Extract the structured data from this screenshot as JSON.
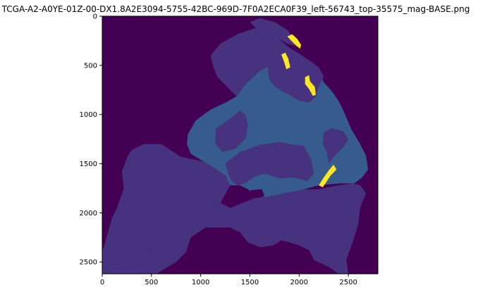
{
  "chart_data": {
    "type": "heatmap",
    "title": "TCGA-A2-A0YE-01Z-00-DX1.8A2E3094-5755-42BC-969D-7F0A2ECA0F39_left-56743_top-35575_mag-BASE.png",
    "xlabel": "",
    "ylabel": "",
    "xlim": [
      0,
      2800
    ],
    "ylim": [
      2620,
      0
    ],
    "x_ticks": [
      0,
      500,
      1000,
      1500,
      2000,
      2500
    ],
    "y_ticks": [
      0,
      500,
      1000,
      1500,
      2000,
      2500
    ],
    "colormap": "viridis",
    "grid": false,
    "legend": "none",
    "classes": [
      {
        "value": 0,
        "color": "#440154"
      },
      {
        "value": 1,
        "color": "#46327e"
      },
      {
        "value": 2,
        "color": "#365c8d"
      },
      {
        "value": 4,
        "color": "#fde725"
      }
    ],
    "regions": [
      {
        "class": 1,
        "polygon": [
          [
            100,
            2050
          ],
          [
            150,
            1950
          ],
          [
            220,
            1750
          ],
          [
            200,
            1580
          ],
          [
            260,
            1420
          ],
          [
            300,
            1360
          ],
          [
            420,
            1300
          ],
          [
            600,
            1300
          ],
          [
            800,
            1430
          ],
          [
            950,
            1460
          ],
          [
            1100,
            1500
          ],
          [
            1250,
            1620
          ],
          [
            1300,
            1720
          ],
          [
            1200,
            1900
          ],
          [
            1050,
            2000
          ],
          [
            800,
            2120
          ],
          [
            650,
            2280
          ],
          [
            400,
            2440
          ],
          [
            250,
            2560
          ],
          [
            0,
            2560
          ],
          [
            0,
            2400
          ]
        ]
      },
      {
        "class": 1,
        "polygon": [
          [
            1300,
            1950
          ],
          [
            1550,
            1850
          ],
          [
            1800,
            1800
          ],
          [
            2050,
            1760
          ],
          [
            2200,
            1760
          ],
          [
            2400,
            1720
          ],
          [
            2550,
            1700
          ],
          [
            2620,
            1720
          ],
          [
            2680,
            1800
          ],
          [
            2620,
            1950
          ],
          [
            2600,
            2120
          ],
          [
            2550,
            2280
          ],
          [
            2480,
            2480
          ],
          [
            2500,
            2620
          ],
          [
            2400,
            2620
          ],
          [
            2300,
            2550
          ],
          [
            2150,
            2480
          ],
          [
            2100,
            2380
          ],
          [
            2000,
            2330
          ],
          [
            1900,
            2300
          ],
          [
            1820,
            2280
          ],
          [
            1740,
            2330
          ],
          [
            1600,
            2350
          ],
          [
            1480,
            2300
          ],
          [
            1400,
            2200
          ],
          [
            1300,
            2150
          ],
          [
            1050,
            2150
          ],
          [
            900,
            2250
          ],
          [
            850,
            2400
          ],
          [
            750,
            2500
          ],
          [
            550,
            2620
          ],
          [
            0,
            2620
          ],
          [
            0,
            2560
          ],
          [
            250,
            2560
          ],
          [
            400,
            2440
          ],
          [
            650,
            2280
          ],
          [
            800,
            2120
          ],
          [
            1050,
            2000
          ],
          [
            1200,
            1900
          ]
        ]
      },
      {
        "class": 1,
        "polygon": [
          [
            1100,
            400
          ],
          [
            1200,
            280
          ],
          [
            1380,
            180
          ],
          [
            1560,
            120
          ],
          [
            1720,
            160
          ],
          [
            1820,
            250
          ],
          [
            1900,
            320
          ],
          [
            2000,
            380
          ],
          [
            2150,
            480
          ],
          [
            2230,
            600
          ],
          [
            2260,
            700
          ],
          [
            2200,
            780
          ],
          [
            2000,
            820
          ],
          [
            1800,
            830
          ],
          [
            1600,
            850
          ],
          [
            1450,
            880
          ],
          [
            1350,
            800
          ],
          [
            1250,
            700
          ],
          [
            1170,
            620
          ],
          [
            1130,
            520
          ]
        ]
      },
      {
        "class": 1,
        "polygon": [
          [
            1600,
            20
          ],
          [
            1750,
            60
          ],
          [
            1880,
            140
          ],
          [
            1950,
            220
          ],
          [
            2000,
            300
          ],
          [
            1900,
            290
          ],
          [
            1800,
            230
          ],
          [
            1700,
            160
          ],
          [
            1560,
            120
          ],
          [
            1500,
            60
          ]
        ]
      },
      {
        "class": 2,
        "polygon": [
          [
            1370,
            810
          ],
          [
            1450,
            700
          ],
          [
            1600,
            560
          ],
          [
            1750,
            480
          ],
          [
            1900,
            460
          ],
          [
            2000,
            520
          ],
          [
            2130,
            600
          ],
          [
            2230,
            650
          ],
          [
            2330,
            760
          ],
          [
            2400,
            860
          ],
          [
            2450,
            960
          ],
          [
            2530,
            1150
          ],
          [
            2620,
            1300
          ],
          [
            2680,
            1420
          ],
          [
            2700,
            1560
          ],
          [
            2640,
            1640
          ],
          [
            2560,
            1700
          ],
          [
            2420,
            1700
          ],
          [
            2200,
            1720
          ],
          [
            2050,
            1760
          ],
          [
            1850,
            1800
          ],
          [
            1650,
            1840
          ],
          [
            1550,
            1830
          ],
          [
            1480,
            1760
          ],
          [
            1400,
            1720
          ],
          [
            1300,
            1720
          ],
          [
            1250,
            1620
          ],
          [
            1150,
            1550
          ],
          [
            1000,
            1460
          ],
          [
            900,
            1400
          ],
          [
            860,
            1300
          ],
          [
            870,
            1200
          ],
          [
            950,
            1060
          ],
          [
            1100,
            950
          ],
          [
            1250,
            880
          ]
        ]
      },
      {
        "class": 1,
        "polygon": [
          [
            1690,
            470
          ],
          [
            1760,
            420
          ],
          [
            1900,
            380
          ],
          [
            2000,
            410
          ],
          [
            2100,
            450
          ],
          [
            2200,
            520
          ],
          [
            2250,
            610
          ],
          [
            2200,
            720
          ],
          [
            2170,
            820
          ],
          [
            2100,
            880
          ],
          [
            2000,
            860
          ],
          [
            1900,
            800
          ],
          [
            1820,
            760
          ],
          [
            1760,
            720
          ],
          [
            1700,
            650
          ],
          [
            1680,
            560
          ]
        ]
      },
      {
        "class": 1,
        "polygon": [
          [
            1150,
            1150
          ],
          [
            1300,
            1040
          ],
          [
            1400,
            960
          ],
          [
            1450,
            1000
          ],
          [
            1480,
            1100
          ],
          [
            1460,
            1240
          ],
          [
            1350,
            1350
          ],
          [
            1220,
            1380
          ],
          [
            1150,
            1300
          ]
        ]
      },
      {
        "class": 1,
        "polygon": [
          [
            1250,
            1500
          ],
          [
            1400,
            1380
          ],
          [
            1600,
            1310
          ],
          [
            1800,
            1280
          ],
          [
            1900,
            1300
          ],
          [
            2050,
            1320
          ],
          [
            2120,
            1450
          ],
          [
            2150,
            1600
          ],
          [
            2080,
            1680
          ],
          [
            1950,
            1640
          ],
          [
            1800,
            1650
          ],
          [
            1650,
            1600
          ],
          [
            1550,
            1630
          ],
          [
            1450,
            1700
          ],
          [
            1370,
            1720
          ],
          [
            1300,
            1660
          ]
        ]
      },
      {
        "class": 1,
        "polygon": [
          [
            2250,
            1180
          ],
          [
            2330,
            1140
          ],
          [
            2450,
            1170
          ],
          [
            2500,
            1250
          ],
          [
            2460,
            1320
          ],
          [
            2360,
            1420
          ],
          [
            2300,
            1500
          ],
          [
            2280,
            1380
          ],
          [
            2240,
            1300
          ]
        ]
      },
      {
        "class": 0,
        "polygon": [
          [
            1500,
            1770
          ],
          [
            1620,
            1760
          ],
          [
            1650,
            1830
          ],
          [
            1580,
            1850
          ],
          [
            1520,
            1830
          ]
        ]
      },
      {
        "class": 4,
        "polygon": [
          [
            1880,
            205
          ],
          [
            1930,
            185
          ],
          [
            1980,
            230
          ],
          [
            2020,
            290
          ],
          [
            2010,
            330
          ],
          [
            1970,
            300
          ],
          [
            1920,
            250
          ]
        ]
      },
      {
        "class": 4,
        "polygon": [
          [
            1820,
            390
          ],
          [
            1860,
            370
          ],
          [
            1890,
            430
          ],
          [
            1910,
            520
          ],
          [
            1870,
            540
          ],
          [
            1850,
            470
          ]
        ]
      },
      {
        "class": 4,
        "polygon": [
          [
            2060,
            620
          ],
          [
            2100,
            600
          ],
          [
            2110,
            660
          ],
          [
            2160,
            720
          ],
          [
            2170,
            800
          ],
          [
            2140,
            810
          ],
          [
            2100,
            740
          ],
          [
            2060,
            690
          ]
        ]
      },
      {
        "class": 4,
        "polygon": [
          [
            2200,
            1720
          ],
          [
            2250,
            1640
          ],
          [
            2300,
            1570
          ],
          [
            2350,
            1510
          ],
          [
            2380,
            1560
          ],
          [
            2320,
            1620
          ],
          [
            2280,
            1680
          ],
          [
            2240,
            1740
          ]
        ]
      }
    ]
  }
}
